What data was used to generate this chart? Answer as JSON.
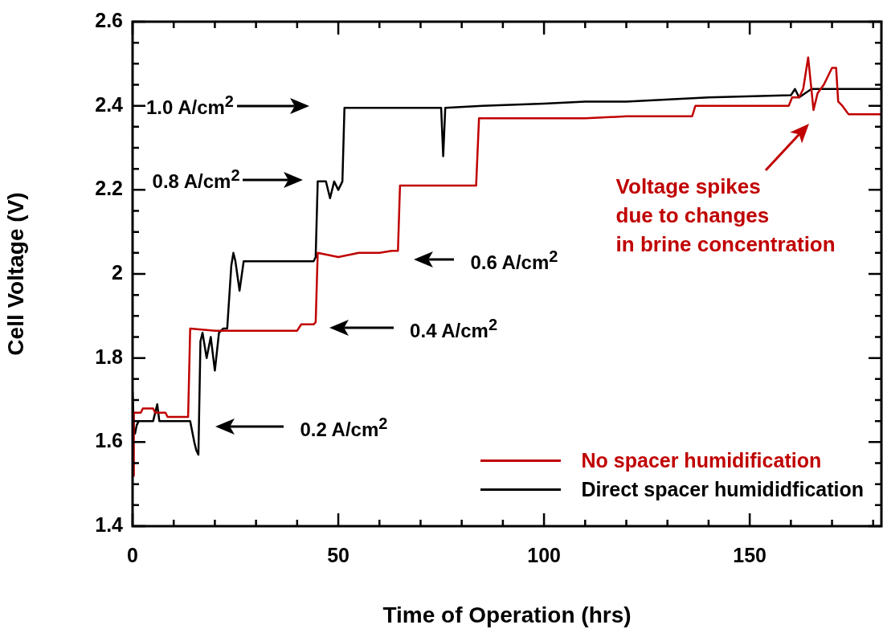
{
  "chart_data": {
    "type": "line",
    "xlabel": "Time of Operation (hrs)",
    "ylabel": "Cell Voltage (V)",
    "xlim": [
      0,
      182
    ],
    "ylim": [
      1.4,
      2.6
    ],
    "xticks": [
      0,
      {
        "value": 10,
        "label": null
      },
      {
        "value": 20,
        "label": null
      },
      {
        "value": 30,
        "label": null
      },
      {
        "value": 40,
        "label": null
      },
      50,
      {
        "value": 60,
        "label": null
      },
      {
        "value": 70,
        "label": null
      },
      {
        "value": 80,
        "label": null
      },
      {
        "value": 90,
        "label": null
      },
      100,
      {
        "value": 110,
        "label": null
      },
      {
        "value": 120,
        "label": null
      },
      {
        "value": 130,
        "label": null
      },
      {
        "value": 140,
        "label": null
      },
      150,
      {
        "value": 160,
        "label": null
      },
      {
        "value": 170,
        "label": null
      },
      {
        "value": 180,
        "label": null
      }
    ],
    "yticks": [
      1.4,
      {
        "value": 1.45,
        "label": null
      },
      {
        "value": 1.5,
        "label": null
      },
      {
        "value": 1.55,
        "label": null
      },
      1.6,
      {
        "value": 1.65,
        "label": null
      },
      {
        "value": 1.7,
        "label": null
      },
      {
        "value": 1.75,
        "label": null
      },
      1.8,
      {
        "value": 1.85,
        "label": null
      },
      {
        "value": 1.9,
        "label": null
      },
      {
        "value": 1.95,
        "label": null
      },
      2,
      {
        "value": 2.05,
        "label": null
      },
      {
        "value": 2.1,
        "label": null
      },
      {
        "value": 2.15,
        "label": null
      },
      2.2,
      {
        "value": 2.25,
        "label": null
      },
      {
        "value": 2.3,
        "label": null
      },
      {
        "value": 2.35,
        "label": null
      },
      2.4,
      {
        "value": 2.45,
        "label": null
      },
      {
        "value": 2.5,
        "label": null
      },
      {
        "value": 2.55,
        "label": null
      },
      2.6
    ],
    "grid": false,
    "legend": "bottom right",
    "marker": "none",
    "line_style": "solid",
    "series": [
      {
        "name": "No spacer humidification",
        "color": "#c00000",
        "x": [
          0.2,
          0.3,
          0.6,
          2,
          2.5,
          5,
          5.5,
          8,
          8.5,
          13,
          13.5,
          14,
          20,
          30,
          40,
          41,
          44,
          44.5,
          45,
          50,
          55,
          60,
          63,
          63.5,
          64.5,
          65,
          70,
          80,
          83.5,
          84.2,
          85,
          100,
          110,
          120,
          136,
          136.8,
          150,
          159.5,
          160.3,
          162,
          163,
          164.2,
          165.5,
          166.5,
          168,
          169,
          170,
          171,
          171.5,
          172.5,
          174,
          182
        ],
        "values": [
          1.52,
          1.67,
          1.67,
          1.67,
          1.68,
          1.68,
          1.67,
          1.67,
          1.66,
          1.66,
          1.66,
          1.87,
          1.865,
          1.865,
          1.865,
          1.88,
          1.88,
          1.885,
          2.05,
          2.04,
          2.05,
          2.05,
          2.055,
          2.055,
          2.055,
          2.21,
          2.21,
          2.21,
          2.21,
          2.37,
          2.37,
          2.37,
          2.37,
          2.375,
          2.375,
          2.4,
          2.4,
          2.4,
          2.42,
          2.42,
          2.44,
          2.515,
          2.39,
          2.43,
          2.45,
          2.47,
          2.49,
          2.49,
          2.41,
          2.4,
          2.38,
          2.38
        ]
      },
      {
        "name": "Direct spacer humididfication",
        "color": "#000000",
        "x": [
          0,
          0.3,
          0.6,
          1,
          1.5,
          3,
          5,
          6,
          6.5,
          7,
          10,
          14,
          15,
          15.5,
          16,
          16.5,
          17,
          18,
          19,
          20,
          21,
          22,
          23,
          24,
          24.5,
          25,
          26,
          27,
          28,
          35,
          40,
          44,
          44.5,
          45,
          47,
          48,
          49,
          50,
          51,
          51.5,
          60,
          70,
          75,
          75.5,
          76,
          85,
          100,
          110,
          120,
          140,
          160,
          161,
          162,
          165,
          170,
          175,
          182
        ],
        "values": [
          1.72,
          1.63,
          1.62,
          1.64,
          1.65,
          1.65,
          1.65,
          1.69,
          1.65,
          1.65,
          1.65,
          1.65,
          1.6,
          1.58,
          1.57,
          1.84,
          1.86,
          1.8,
          1.85,
          1.77,
          1.86,
          1.87,
          1.87,
          2.02,
          2.05,
          2.03,
          1.96,
          2.03,
          2.03,
          2.03,
          2.03,
          2.03,
          2.04,
          2.22,
          2.22,
          2.18,
          2.22,
          2.2,
          2.22,
          2.395,
          2.395,
          2.395,
          2.395,
          2.28,
          2.395,
          2.4,
          2.405,
          2.41,
          2.41,
          2.42,
          2.425,
          2.44,
          2.42,
          2.44,
          2.44,
          2.44,
          2.44
        ]
      }
    ],
    "annotations": [
      "1.0 A/cm$^{2}$",
      "0.8 A/cm$^{2}$",
      "0.6 A/cm$^{2}$",
      "0.4 A/cm$^{2}$",
      "0.2 A/cm$^{2}$",
      "Voltage spikes\ndue to changes\nin brine concentration"
    ]
  }
}
